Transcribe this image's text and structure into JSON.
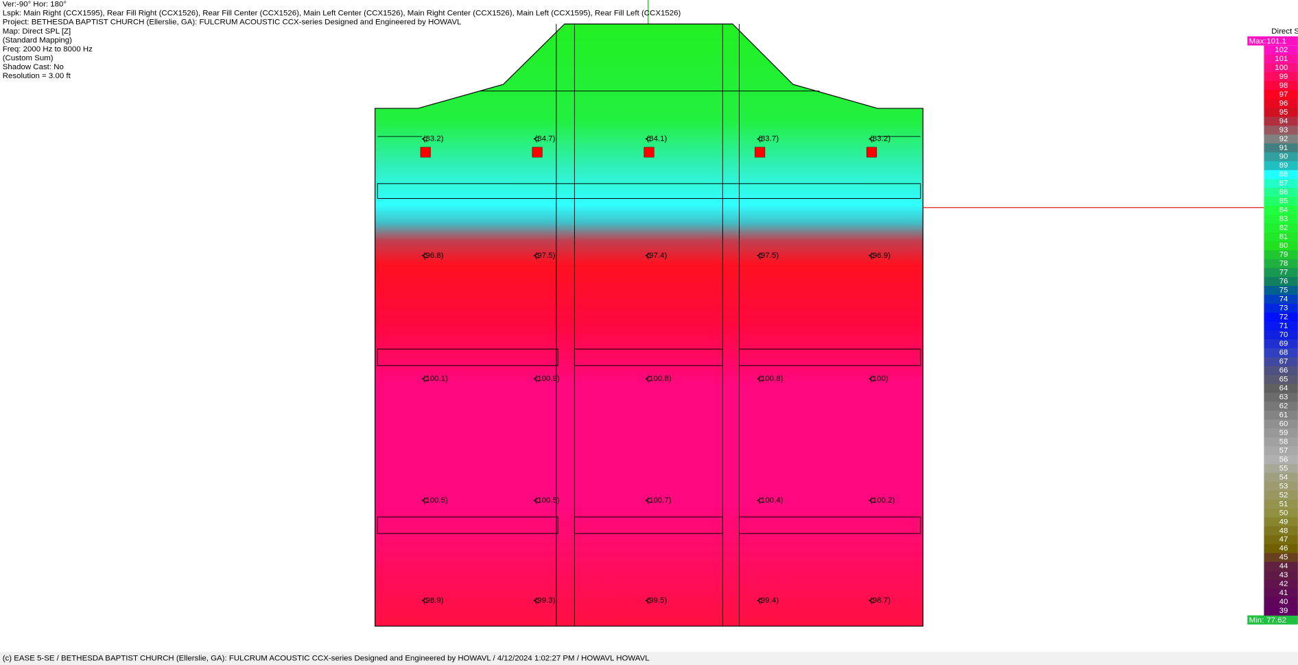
{
  "header": {
    "lines": [
      "Ver:-90°   Hor: 180°",
      "Lspk: Main Right (CCX1595), Rear Fill Right (CCX1526), Rear Fill Center (CCX1526), Main Left Center (CCX1526), Main Right Center (CCX1526), Main Left (CCX1595), Rear Fill Left (CCX1526)",
      "Project: BETHESDA BAPTIST CHURCH (Ellerslie, GA): FULCRUM ACOUSTIC CCX-series   Designed and Engineered by HOWAVL",
      "Map: Direct SPL [Z]",
      "(Standard Mapping)",
      "Freq: 2000 Hz to  8000 Hz",
      "(Custom Sum)",
      "Shadow Cast: No",
      "Resolution =   3.00 ft"
    ]
  },
  "legend": {
    "title": "Direct SPL [dB]",
    "max_label": "Max:",
    "max": "101.1",
    "min_label": "Min:",
    "min": "77.62",
    "levels": [
      102,
      101,
      100,
      99,
      98,
      97,
      96,
      95,
      94,
      93,
      92,
      91,
      90,
      89,
      88,
      87,
      86,
      85,
      84,
      83,
      82,
      81,
      80,
      79,
      78,
      77,
      76,
      75,
      74,
      73,
      72,
      71,
      70,
      69,
      68,
      67,
      66,
      65,
      64,
      63,
      62,
      61,
      60,
      59,
      58,
      57,
      56,
      55,
      54,
      53,
      52,
      51,
      50,
      49,
      48,
      47,
      46,
      45,
      44,
      43,
      42,
      41,
      40,
      39
    ]
  },
  "map": {
    "readings": [
      [
        "(83.2)",
        "(84.7)",
        "(84.1)",
        "(83.7)",
        "(83.2)"
      ],
      [
        "(96.8)",
        "(97.5)",
        "(97.4)",
        "(97.5)",
        "(96.9)"
      ],
      [
        "(100.1)",
        "(100.9)",
        "(100.8)",
        "(100.8)",
        "(100)"
      ],
      [
        "(100.5)",
        "(100.5)",
        "(100.7)",
        "(100.4)",
        "(100.2)"
      ],
      [
        "(98.9)",
        "(99.3)",
        "(99.5)",
        "(99.4)",
        "(98.7)"
      ]
    ]
  },
  "footer": "(c) EASE 5-SE  / BETHESDA BAPTIST CHURCH (Ellerslie, GA): FULCRUM ACOUSTIC CCX-series   Designed and Engineered by HOWAVL  / 4/12/2024 1:02:27 PM / HOWAVL HOWAVL"
}
